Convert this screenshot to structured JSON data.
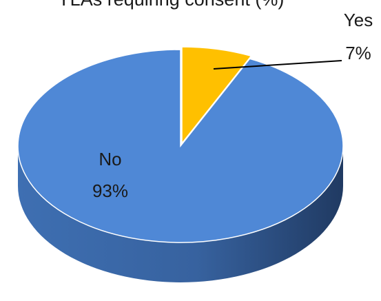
{
  "chart_data": {
    "type": "pie",
    "title": "YLAs requiring consent (%)",
    "slices": [
      {
        "name": "No",
        "value": 93,
        "label": "93%",
        "color": "#4f88d6"
      },
      {
        "name": "Yes",
        "value": 7,
        "label": "7%",
        "color": "#ffc000"
      }
    ],
    "style": "3d"
  }
}
